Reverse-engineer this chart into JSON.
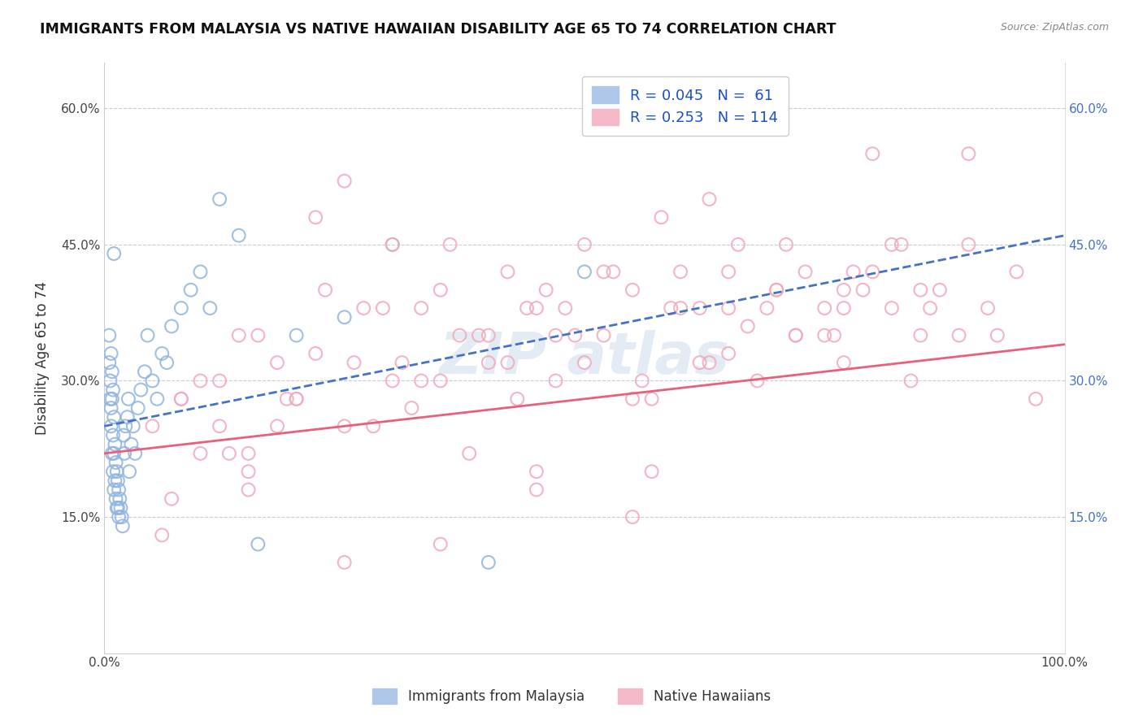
{
  "title": "IMMIGRANTS FROM MALAYSIA VS NATIVE HAWAIIAN DISABILITY AGE 65 TO 74 CORRELATION CHART",
  "source": "Source: ZipAtlas.com",
  "ylabel": "Disability Age 65 to 74",
  "xlim": [
    0.0,
    1.0
  ],
  "ylim": [
    0.0,
    0.65
  ],
  "ytick_vals": [
    0.0,
    0.15,
    0.3,
    0.45,
    0.6
  ],
  "ytick_labels": [
    "",
    "15.0%",
    "30.0%",
    "45.0%",
    "60.0%"
  ],
  "grid_color": "#cccccc",
  "background_color": "#ffffff",
  "series1": {
    "label": "Immigrants from Malaysia",
    "scatter_color": "#90b4e0",
    "line_color": "#4472c4",
    "line_style": "--",
    "R": "0.045",
    "N": " 61"
  },
  "series2": {
    "label": "Native Hawaiians",
    "scatter_color": "#f4a7b9",
    "line_color": "#e8607a",
    "line_style": "-",
    "R": "0.253",
    "N": "114"
  },
  "blue_trend": [
    0.25,
    0.46
  ],
  "pink_trend": [
    0.22,
    0.34
  ],
  "blue_scatter_x": [
    0.005,
    0.005,
    0.006,
    0.006,
    0.007,
    0.007,
    0.007,
    0.008,
    0.008,
    0.008,
    0.009,
    0.009,
    0.009,
    0.01,
    0.01,
    0.01,
    0.011,
    0.011,
    0.012,
    0.012,
    0.013,
    0.013,
    0.014,
    0.014,
    0.015,
    0.015,
    0.016,
    0.017,
    0.018,
    0.019,
    0.02,
    0.021,
    0.022,
    0.024,
    0.025,
    0.026,
    0.028,
    0.03,
    0.032,
    0.035,
    0.038,
    0.042,
    0.045,
    0.05,
    0.055,
    0.06,
    0.065,
    0.07,
    0.08,
    0.09,
    0.1,
    0.11,
    0.12,
    0.14,
    0.16,
    0.2,
    0.25,
    0.3,
    0.4,
    0.5,
    0.01
  ],
  "blue_scatter_y": [
    0.35,
    0.32,
    0.28,
    0.3,
    0.25,
    0.27,
    0.33,
    0.22,
    0.28,
    0.31,
    0.2,
    0.24,
    0.29,
    0.18,
    0.22,
    0.26,
    0.19,
    0.23,
    0.17,
    0.21,
    0.16,
    0.2,
    0.16,
    0.19,
    0.15,
    0.18,
    0.17,
    0.16,
    0.15,
    0.14,
    0.24,
    0.22,
    0.25,
    0.26,
    0.28,
    0.2,
    0.23,
    0.25,
    0.22,
    0.27,
    0.29,
    0.31,
    0.35,
    0.3,
    0.28,
    0.33,
    0.32,
    0.36,
    0.38,
    0.4,
    0.42,
    0.38,
    0.5,
    0.46,
    0.12,
    0.35,
    0.37,
    0.45,
    0.1,
    0.42,
    0.44
  ],
  "pink_scatter_x": [
    0.05,
    0.08,
    0.1,
    0.12,
    0.14,
    0.15,
    0.18,
    0.2,
    0.22,
    0.25,
    0.27,
    0.3,
    0.32,
    0.35,
    0.37,
    0.4,
    0.42,
    0.45,
    0.47,
    0.5,
    0.52,
    0.55,
    0.57,
    0.6,
    0.62,
    0.65,
    0.67,
    0.7,
    0.72,
    0.75,
    0.77,
    0.8,
    0.82,
    0.85,
    0.87,
    0.9,
    0.92,
    0.95,
    0.1,
    0.13,
    0.16,
    0.19,
    0.23,
    0.26,
    0.29,
    0.33,
    0.36,
    0.39,
    0.43,
    0.46,
    0.49,
    0.53,
    0.56,
    0.59,
    0.63,
    0.66,
    0.69,
    0.73,
    0.76,
    0.79,
    0.83,
    0.86,
    0.89,
    0.22,
    0.35,
    0.48,
    0.6,
    0.72,
    0.85,
    0.3,
    0.5,
    0.65,
    0.78,
    0.4,
    0.55,
    0.7,
    0.25,
    0.45,
    0.62,
    0.8,
    0.15,
    0.28,
    0.42,
    0.58,
    0.75,
    0.38,
    0.52,
    0.68,
    0.82,
    0.2,
    0.33,
    0.47,
    0.63,
    0.77,
    0.9,
    0.18,
    0.31,
    0.44,
    0.57,
    0.71,
    0.84,
    0.93,
    0.97,
    0.65,
    0.77,
    0.45,
    0.55,
    0.35,
    0.25,
    0.15,
    0.07,
    0.06,
    0.08,
    0.12
  ],
  "pink_scatter_y": [
    0.25,
    0.28,
    0.22,
    0.3,
    0.35,
    0.2,
    0.32,
    0.28,
    0.33,
    0.25,
    0.38,
    0.3,
    0.27,
    0.4,
    0.35,
    0.32,
    0.42,
    0.38,
    0.3,
    0.45,
    0.35,
    0.4,
    0.28,
    0.38,
    0.32,
    0.42,
    0.36,
    0.4,
    0.35,
    0.38,
    0.32,
    0.42,
    0.38,
    0.35,
    0.4,
    0.45,
    0.38,
    0.42,
    0.3,
    0.22,
    0.35,
    0.28,
    0.4,
    0.32,
    0.38,
    0.3,
    0.45,
    0.35,
    0.28,
    0.4,
    0.35,
    0.42,
    0.3,
    0.38,
    0.32,
    0.45,
    0.38,
    0.42,
    0.35,
    0.4,
    0.45,
    0.38,
    0.35,
    0.48,
    0.3,
    0.38,
    0.42,
    0.35,
    0.4,
    0.45,
    0.32,
    0.38,
    0.42,
    0.35,
    0.28,
    0.4,
    0.52,
    0.2,
    0.38,
    0.55,
    0.18,
    0.25,
    0.32,
    0.48,
    0.35,
    0.22,
    0.42,
    0.3,
    0.45,
    0.28,
    0.38,
    0.35,
    0.5,
    0.4,
    0.55,
    0.25,
    0.32,
    0.38,
    0.2,
    0.45,
    0.3,
    0.35,
    0.28,
    0.33,
    0.38,
    0.18,
    0.15,
    0.12,
    0.1,
    0.22,
    0.17,
    0.13,
    0.28,
    0.25
  ]
}
